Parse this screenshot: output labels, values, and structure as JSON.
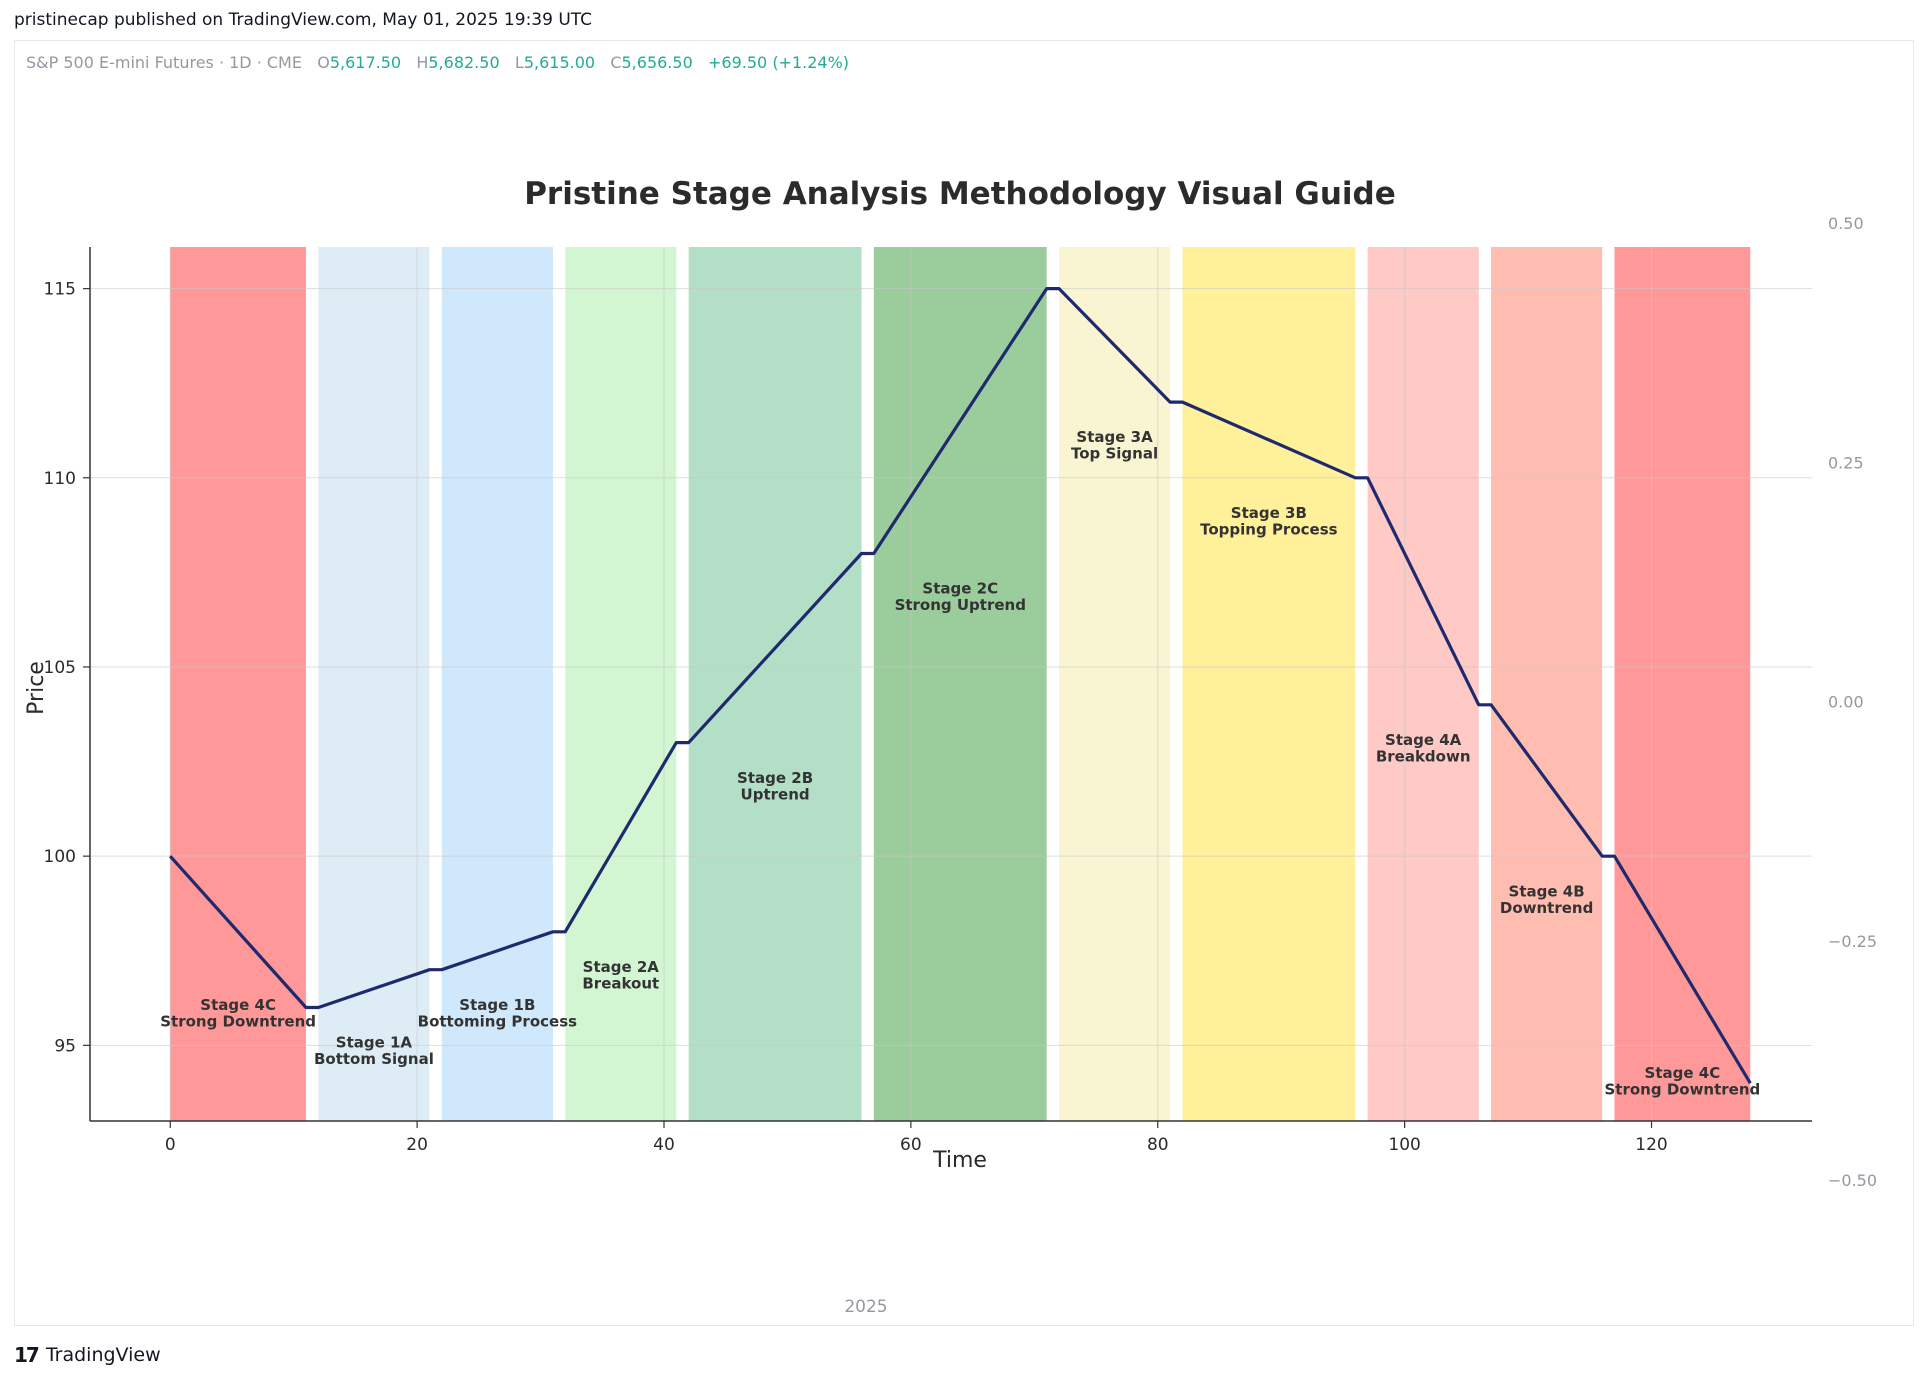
{
  "header": {
    "published": "pristinecap published on TradingView.com, May 01, 2025 19:39 UTC"
  },
  "legend": {
    "symbol": "S&P 500 E-mini Futures · 1D · CME",
    "open_label": "O",
    "open": "5,617.50",
    "high_label": "H",
    "high": "5,682.50",
    "low_label": "L",
    "low": "5,615.00",
    "close_label": "C",
    "close": "5,656.50",
    "change": "+69.50 (+1.24%)"
  },
  "time_axis_label": "2025",
  "footer": {
    "logo_mark": "17",
    "brand": "TradingView"
  },
  "colors": {
    "line": "#1f2a6e",
    "up": "#22ab94",
    "muted": "#9598a1"
  },
  "chart_data": {
    "type": "line",
    "title": "Pristine Stage Analysis Methodology Visual Guide",
    "xlabel": "Time",
    "ylabel": "Price",
    "xlim": [
      -6.5,
      133
    ],
    "ylim": [
      93,
      116.1
    ],
    "x_ticks": [
      0,
      20,
      40,
      60,
      80,
      100,
      120
    ],
    "y_ticks": [
      95,
      100,
      105,
      110,
      115
    ],
    "right_axis_ticks": [
      "0.50",
      "0.25",
      "0.00",
      "−0.25",
      "−0.50"
    ],
    "grid": true,
    "series": [
      {
        "points": [
          [
            0,
            100
          ],
          [
            11,
            96
          ],
          [
            12,
            96
          ],
          [
            21,
            97
          ],
          [
            22,
            97
          ],
          [
            31,
            98
          ],
          [
            32,
            98
          ],
          [
            41,
            103
          ],
          [
            42,
            103
          ],
          [
            56,
            108
          ],
          [
            57,
            108
          ],
          [
            71,
            115
          ],
          [
            72,
            115
          ],
          [
            81,
            112
          ],
          [
            82,
            112
          ],
          [
            96,
            110
          ],
          [
            97,
            110
          ],
          [
            106,
            104
          ],
          [
            107,
            104
          ],
          [
            116,
            100
          ],
          [
            117,
            100
          ],
          [
            128,
            94
          ]
        ]
      }
    ],
    "stages": [
      {
        "x0": 0,
        "x1": 11,
        "color": "#ff9999",
        "label": "Stage 4C\nStrong Downtrend",
        "lx": 5.5,
        "ly": 95.9
      },
      {
        "x0": 12,
        "x1": 21,
        "color": "#deedf5",
        "label": "Stage 1A\nBottom Signal",
        "lx": 16.5,
        "ly": 94.9
      },
      {
        "x0": 22,
        "x1": 31,
        "color": "#d0e8fb",
        "label": "Stage 1B\nBottoming Process",
        "lx": 26.5,
        "ly": 95.9
      },
      {
        "x0": 32,
        "x1": 41,
        "color": "#d2f6d2",
        "label": "Stage 2A\nBreakout",
        "lx": 36.5,
        "ly": 96.9
      },
      {
        "x0": 42,
        "x1": 56,
        "color": "#b3dfc7",
        "label": "Stage 2B\nUptrend",
        "lx": 49,
        "ly": 101.9
      },
      {
        "x0": 57,
        "x1": 71,
        "color": "#9bcc9b",
        "label": "Stage 2C\nStrong Uptrend",
        "lx": 64,
        "ly": 106.9
      },
      {
        "x0": 72,
        "x1": 81,
        "color": "#f9f5d2",
        "label": "Stage 3A\nTop Signal",
        "lx": 76.5,
        "ly": 110.9
      },
      {
        "x0": 82,
        "x1": 96,
        "color": "#fff09a",
        "label": "Stage 3B\nTopping Process",
        "lx": 89,
        "ly": 108.9
      },
      {
        "x0": 97,
        "x1": 106,
        "color": "#ffc9c5",
        "label": "Stage 4A\nBreakdown",
        "lx": 101.5,
        "ly": 102.9
      },
      {
        "x0": 107,
        "x1": 116,
        "color": "#ffbdb1",
        "label": "Stage 4B\nDowntrend",
        "lx": 111.5,
        "ly": 98.9
      },
      {
        "x0": 117,
        "x1": 128,
        "color": "#ff9999",
        "label": "Stage 4C\nStrong Downtrend",
        "lx": 122.5,
        "ly": 94.1
      }
    ]
  }
}
